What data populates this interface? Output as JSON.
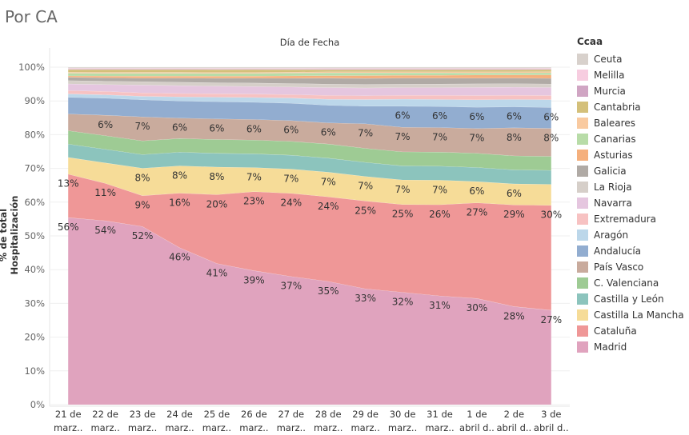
{
  "page": {
    "title": "Por CA"
  },
  "chart_data": {
    "type": "area",
    "stacked": true,
    "normalized": true,
    "column_header": "Día de Fecha",
    "ylabel": "% de total Hospitalización",
    "ylim": [
      0,
      100
    ],
    "yticks": [
      "0%",
      "10%",
      "20%",
      "30%",
      "40%",
      "50%",
      "60%",
      "70%",
      "80%",
      "90%",
      "100%"
    ],
    "categories": [
      [
        "21 de",
        "marz.."
      ],
      [
        "22 de",
        "marz.."
      ],
      [
        "23 de",
        "marz.."
      ],
      [
        "24 de",
        "marz.."
      ],
      [
        "25 de",
        "marz.."
      ],
      [
        "26 de",
        "marz.."
      ],
      [
        "27 de",
        "marz.."
      ],
      [
        "28 de",
        "marz.."
      ],
      [
        "29 de",
        "marz.."
      ],
      [
        "30 de",
        "marz.."
      ],
      [
        "31 de",
        "marz.."
      ],
      [
        "1 de",
        "abril d.."
      ],
      [
        "2 de",
        "abril d.."
      ],
      [
        "3 de",
        "abril d.."
      ]
    ],
    "legend_title": "Ccaa",
    "series": [
      {
        "name": "Madrid",
        "color": "#e0a3be",
        "values": [
          56,
          54,
          52,
          46,
          41,
          39,
          37,
          35,
          33,
          32,
          31,
          30,
          28,
          27
        ],
        "labels": [
          "56%",
          "54%",
          "52%",
          "46%",
          "41%",
          "39%",
          "37%",
          "35%",
          "33%",
          "32%",
          "31%",
          "30%",
          "28%",
          "27%"
        ]
      },
      {
        "name": "Cataluña",
        "color": "#ef9797",
        "values": [
          13,
          11,
          9,
          16,
          20,
          23,
          24,
          24,
          25,
          25,
          26,
          27,
          29,
          30
        ],
        "labels": [
          "13%",
          "11%",
          "9%",
          "16%",
          "20%",
          "23%",
          "24%",
          "24%",
          "25%",
          "25%",
          "26%",
          "27%",
          "29%",
          "30%"
        ]
      },
      {
        "name": "Castilla La Mancha",
        "color": "#f6dc98",
        "values": [
          5,
          6,
          8,
          8,
          8,
          7,
          7,
          7,
          7,
          7,
          7,
          6,
          6,
          6
        ],
        "labels": [
          "",
          "",
          "8%",
          "8%",
          "8%",
          "7%",
          "7%",
          "7%",
          "7%",
          "7%",
          "7%",
          "6%",
          "6%",
          ""
        ]
      },
      {
        "name": "Castilla y León",
        "color": "#8cc4bd",
        "values": [
          4,
          4,
          4,
          4,
          4,
          4,
          4,
          4,
          4,
          4,
          4,
          4,
          4,
          4
        ],
        "labels": []
      },
      {
        "name": "C. Valenciana",
        "color": "#9ecb94",
        "values": [
          4,
          4,
          4,
          4,
          4,
          4,
          4,
          4,
          4,
          4,
          4,
          4,
          4,
          4
        ],
        "labels": []
      },
      {
        "name": "País Vasco",
        "color": "#c9ab9d",
        "values": [
          5,
          6,
          7,
          6,
          6,
          6,
          6,
          6,
          7,
          7,
          7,
          7,
          8,
          8
        ],
        "labels": [
          "",
          "6%",
          "7%",
          "6%",
          "6%",
          "6%",
          "6%",
          "6%",
          "7%",
          "7%",
          "7%",
          "7%",
          "8%",
          "8%"
        ]
      },
      {
        "name": "Andalucía",
        "color": "#92add0",
        "values": [
          5,
          5,
          5,
          5,
          5,
          5,
          5,
          5,
          5,
          6,
          6,
          6,
          6,
          6
        ],
        "labels": [
          "",
          "",
          "",
          "",
          "",
          "",
          "",
          "",
          "",
          "6%",
          "6%",
          "6%",
          "6%",
          "6%"
        ]
      },
      {
        "name": "Aragón",
        "color": "#bcd7ea",
        "values": [
          1,
          1,
          1,
          1.2,
          1.3,
          1.4,
          1.5,
          1.7,
          1.9,
          2,
          2,
          2.1,
          2.1,
          2.2
        ],
        "labels": []
      },
      {
        "name": "Extremadura",
        "color": "#f7c2c2",
        "values": [
          1,
          1,
          1,
          1,
          1,
          1,
          1,
          1.1,
          1.1,
          1.1,
          1.2,
          1.2,
          1.2,
          1.2
        ],
        "labels": []
      },
      {
        "name": "Navarra",
        "color": "#e5c6df",
        "values": [
          2,
          2,
          2.3,
          2.3,
          2.2,
          2.2,
          2.2,
          2.2,
          2.2,
          2.2,
          2.2,
          2.3,
          2.3,
          2.3
        ],
        "labels": []
      },
      {
        "name": "La Rioja",
        "color": "#d6cfc9",
        "values": [
          1,
          1,
          1,
          1,
          1,
          1,
          1,
          1,
          1,
          1,
          1,
          1,
          1,
          1
        ],
        "labels": []
      },
      {
        "name": "Galicia",
        "color": "#b0aaa5",
        "values": [
          1,
          1,
          1,
          1.2,
          1.3,
          1.4,
          1.5,
          1.7,
          1.7,
          1.7,
          1.7,
          1.6,
          1.6,
          1.6
        ],
        "labels": []
      },
      {
        "name": "Asturias",
        "color": "#f5b07d",
        "values": [
          0.4,
          0.5,
          0.6,
          0.6,
          0.6,
          0.6,
          0.7,
          0.7,
          0.8,
          0.8,
          0.8,
          0.9,
          0.9,
          1.0
        ],
        "labels": []
      },
      {
        "name": "Canarias",
        "color": "#b8dca8",
        "values": [
          0.8,
          0.8,
          0.8,
          0.8,
          0.8,
          0.8,
          0.8,
          0.8,
          0.8,
          0.7,
          0.7,
          0.6,
          0.6,
          0.6
        ],
        "labels": []
      },
      {
        "name": "Baleares",
        "color": "#f9caa0",
        "values": [
          0.3,
          0.3,
          0.3,
          0.3,
          0.3,
          0.3,
          0.3,
          0.3,
          0.3,
          0.3,
          0.3,
          0.3,
          0.3,
          0.3
        ],
        "labels": []
      },
      {
        "name": "Cantabria",
        "color": "#d4c07a",
        "values": [
          0.8,
          0.8,
          0.8,
          0.8,
          0.8,
          0.8,
          0.7,
          0.6,
          0.6,
          0.6,
          0.6,
          0.6,
          0.6,
          0.6
        ],
        "labels": []
      },
      {
        "name": "Murcia",
        "color": "#d0a5c3",
        "values": [
          0.2,
          0.2,
          0.2,
          0.2,
          0.2,
          0.2,
          0.2,
          0.2,
          0.2,
          0.2,
          0.2,
          0.2,
          0.2,
          0.2
        ],
        "labels": []
      },
      {
        "name": "Melilla",
        "color": "#f7cde0",
        "values": [
          0.2,
          0.2,
          0.2,
          0.2,
          0.2,
          0.2,
          0.2,
          0.2,
          0.2,
          0.2,
          0.2,
          0.2,
          0.2,
          0.2
        ],
        "labels": []
      },
      {
        "name": "Ceuta",
        "color": "#d8d1cc",
        "values": [
          0.3,
          0.3,
          0.3,
          0.3,
          0.3,
          0.3,
          0.3,
          0.3,
          0.3,
          0.3,
          0.3,
          0.3,
          0.3,
          0.3
        ],
        "labels": []
      }
    ]
  }
}
